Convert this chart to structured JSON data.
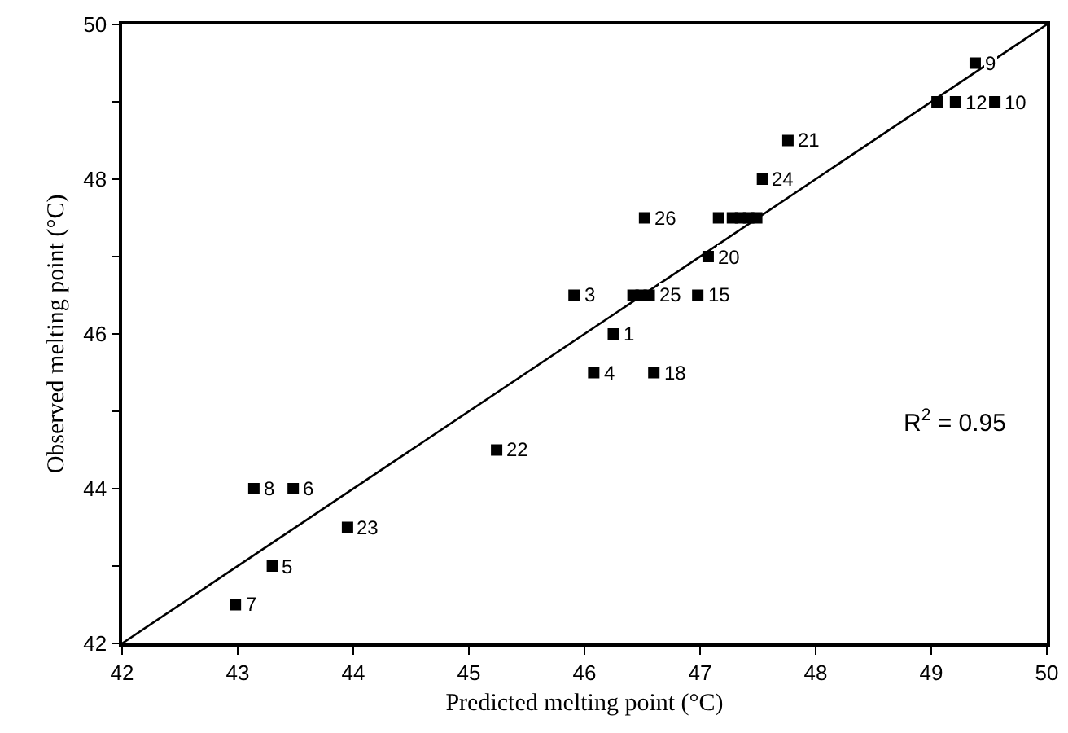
{
  "chart_data": {
    "type": "scatter",
    "xlabel": "Predicted melting point (°C)",
    "ylabel": "Observed melting point (°C)",
    "annotations": [
      "R$^{2}$ = 0.95",
      {
        "text": "7",
        "x": 42.98,
        "y": 42.5
      },
      {
        "text": "5",
        "x": 43.3,
        "y": 43.0
      },
      {
        "text": "8",
        "x": 43.14,
        "y": 44.0
      },
      {
        "text": "6",
        "x": 43.48,
        "y": 44.0
      },
      {
        "text": "23",
        "x": 43.95,
        "y": 43.5
      },
      {
        "text": "22",
        "x": 45.24,
        "y": 44.5
      },
      {
        "text": "3",
        "x": 45.91,
        "y": 46.5
      },
      {
        "text": "1",
        "x": 46.25,
        "y": 46.0
      },
      {
        "text": "4",
        "x": 46.08,
        "y": 45.5
      },
      {
        "text": "18",
        "x": 46.6,
        "y": 45.5
      },
      {
        "text": "25",
        "x": 46.56,
        "y": 46.5
      },
      {
        "text": "15",
        "x": 46.98,
        "y": 46.5
      },
      {
        "text": "20",
        "x": 47.07,
        "y": 47.0
      },
      {
        "text": "9",
        "x": 49.38,
        "y": 49.5
      },
      {
        "text": "12",
        "x": 49.21,
        "y": 49.0
      },
      {
        "text": "10",
        "x": 49.55,
        "y": 49.0
      },
      {
        "text": "21",
        "x": 47.76,
        "y": 48.5
      },
      {
        "text": "24",
        "x": 47.54,
        "y": 48.0
      },
      {
        "text": "26",
        "x": 46.52,
        "y": 47.5
      }
    ],
    "xlim": [
      42,
      50
    ],
    "ylim": [
      42,
      50
    ],
    "xticks": [
      42,
      43,
      44,
      45,
      46,
      47,
      48,
      49,
      50
    ],
    "yticks": [
      42,
      {
        "value": 43,
        "label": null
      },
      44,
      {
        "value": 45,
        "label": null
      },
      46,
      {
        "value": 47,
        "label": null
      },
      48,
      {
        "value": 49,
        "label": null
      },
      50
    ],
    "marker": "square",
    "series": [
      {
        "color": "#000000",
        "x": [
          42.98,
          43.3,
          43.14,
          43.48,
          43.95,
          45.24,
          45.91,
          46.25,
          46.08,
          46.6,
          46.42,
          46.49,
          46.56,
          46.98,
          47.07,
          49.38,
          49.05,
          49.21,
          49.55,
          47.76,
          47.54,
          46.52,
          47.16,
          47.28,
          47.35,
          47.42,
          47.49
        ],
        "values": [
          42.5,
          43.0,
          44.0,
          44.0,
          43.5,
          44.5,
          46.5,
          46.0,
          45.5,
          45.5,
          46.5,
          46.5,
          46.5,
          46.5,
          47.0,
          49.5,
          49.0,
          49.0,
          49.0,
          48.5,
          48.0,
          47.5,
          47.5,
          47.5,
          47.5,
          47.5,
          47.5
        ]
      },
      {
        "type": "line",
        "color": "#000000",
        "line_style": "solid",
        "marker": "none",
        "x": [
          42,
          50
        ],
        "values": [
          42,
          50
        ]
      }
    ]
  }
}
